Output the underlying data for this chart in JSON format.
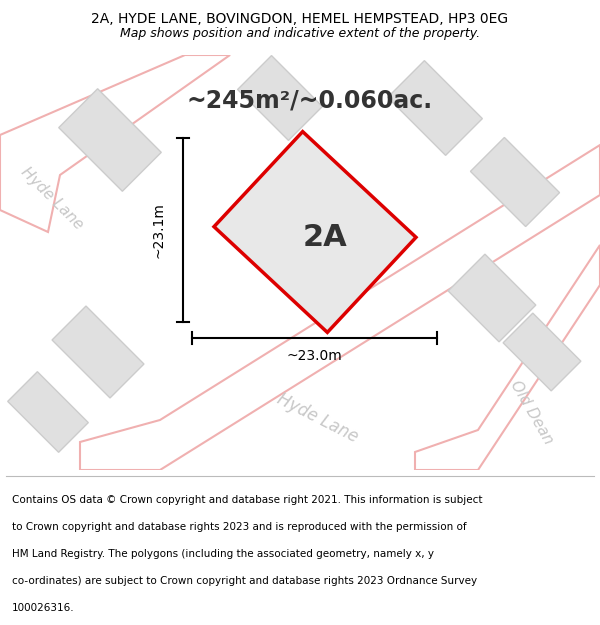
{
  "title_line1": "2A, HYDE LANE, BOVINGDON, HEMEL HEMPSTEAD, HP3 0EG",
  "title_line2": "Map shows position and indicative extent of the property.",
  "area_text": "~245m²/~0.060ac.",
  "label_2a": "2A",
  "dim_vertical": "~23.1m",
  "dim_horizontal": "~23.0m",
  "road_label_topleft": "Hyde Lane",
  "road_label_bottom": "Hyde Lane",
  "road_label_right": "Old Dean",
  "footer_lines": [
    "Contains OS data © Crown copyright and database right 2021. This information is subject",
    "to Crown copyright and database rights 2023 and is reproduced with the permission of",
    "HM Land Registry. The polygons (including the associated geometry, namely x, y",
    "co-ordinates) are subject to Crown copyright and database rights 2023 Ordnance Survey",
    "100026316."
  ],
  "bg_color": "#ffffff",
  "map_bg": "#f0f0f0",
  "road_color": "#ffffff",
  "road_stroke": "#f0b0b0",
  "building_fill": "#e0e0e0",
  "building_stroke": "#cccccc",
  "property_fill": "#e8e8e8",
  "property_stroke": "#dd0000",
  "dim_line_color": "#000000",
  "text_color": "#000000",
  "road_text_color": "#c8c8c8"
}
